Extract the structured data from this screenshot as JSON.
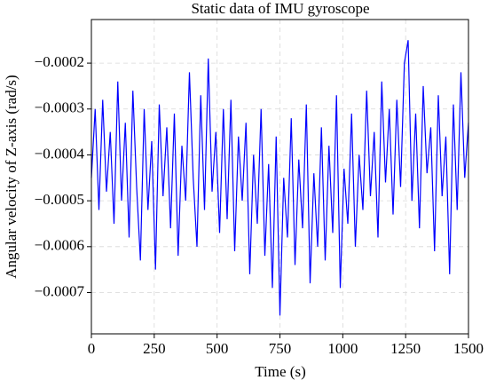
{
  "chart_data": {
    "type": "line",
    "title": "Static data of IMU gyroscope",
    "x_label": "Time (s)",
    "y_label": "Angular velocity of Z-axis (rad/s)",
    "x": [
      0,
      15,
      30,
      45,
      60,
      75,
      90,
      105,
      120,
      135,
      150,
      165,
      180,
      195,
      210,
      225,
      240,
      255,
      270,
      285,
      300,
      315,
      330,
      345,
      360,
      375,
      390,
      405,
      420,
      435,
      450,
      465,
      480,
      495,
      510,
      525,
      540,
      555,
      570,
      585,
      600,
      615,
      630,
      645,
      660,
      675,
      690,
      705,
      720,
      735,
      750,
      765,
      780,
      795,
      810,
      825,
      840,
      855,
      870,
      885,
      900,
      915,
      930,
      945,
      960,
      975,
      990,
      1005,
      1020,
      1035,
      1050,
      1065,
      1080,
      1095,
      1110,
      1125,
      1140,
      1155,
      1170,
      1185,
      1200,
      1215,
      1230,
      1245,
      1260,
      1275,
      1290,
      1305,
      1320,
      1335,
      1350,
      1365,
      1380,
      1395,
      1410,
      1425,
      1440,
      1455,
      1470,
      1485,
      1500
    ],
    "series": [
      {
        "color": "#0000ff",
        "values": [
          -0.00045,
          -0.0003,
          -0.00052,
          -0.00028,
          -0.00048,
          -0.00035,
          -0.00055,
          -0.00024,
          -0.0005,
          -0.00033,
          -0.00058,
          -0.00026,
          -0.00047,
          -0.00063,
          -0.0003,
          -0.00052,
          -0.00037,
          -0.00065,
          -0.00029,
          -0.00049,
          -0.00034,
          -0.00056,
          -0.00031,
          -0.00062,
          -0.00038,
          -0.0005,
          -0.00022,
          -0.00045,
          -0.0006,
          -0.00027,
          -0.00052,
          -0.00019,
          -0.00048,
          -0.00035,
          -0.00057,
          -0.0003,
          -0.00054,
          -0.00028,
          -0.00061,
          -0.00036,
          -0.0005,
          -0.00033,
          -0.00066,
          -0.0004,
          -0.00055,
          -0.0003,
          -0.00062,
          -0.00042,
          -0.00069,
          -0.00036,
          -0.00075,
          -0.00045,
          -0.00058,
          -0.00032,
          -0.00064,
          -0.00041,
          -0.00056,
          -0.00029,
          -0.00068,
          -0.00044,
          -0.0006,
          -0.00034,
          -0.00063,
          -0.00038,
          -0.00057,
          -0.00027,
          -0.00069,
          -0.00043,
          -0.00055,
          -0.00031,
          -0.0006,
          -0.0004,
          -0.00052,
          -0.00026,
          -0.00049,
          -0.00035,
          -0.00058,
          -0.00024,
          -0.00046,
          -0.0003,
          -0.00053,
          -0.00028,
          -0.00047,
          -0.0002,
          -0.00015,
          -0.0005,
          -0.00031,
          -0.00056,
          -0.00025,
          -0.00044,
          -0.00034,
          -0.00061,
          -0.00027,
          -0.00049,
          -0.00036,
          -0.00066,
          -0.00029,
          -0.00052,
          -0.00022,
          -0.00045,
          -0.00033
        ]
      }
    ],
    "xlim": [
      0,
      1500
    ],
    "xticks": [
      0,
      250,
      500,
      750,
      1000,
      1250,
      1500
    ],
    "ylim": [
      -0.00079,
      -0.000105
    ],
    "yticks": [
      {
        "value": -0.0007,
        "label": "−0.0007"
      },
      {
        "value": -0.0006,
        "label": "−0.0006"
      },
      {
        "value": -0.0005,
        "label": "−0.0005"
      },
      {
        "value": -0.0004,
        "label": "−0.0004"
      },
      {
        "value": -0.0003,
        "label": "−0.0003"
      },
      {
        "value": -0.0002,
        "label": "−0.0002"
      }
    ],
    "grid": true
  }
}
